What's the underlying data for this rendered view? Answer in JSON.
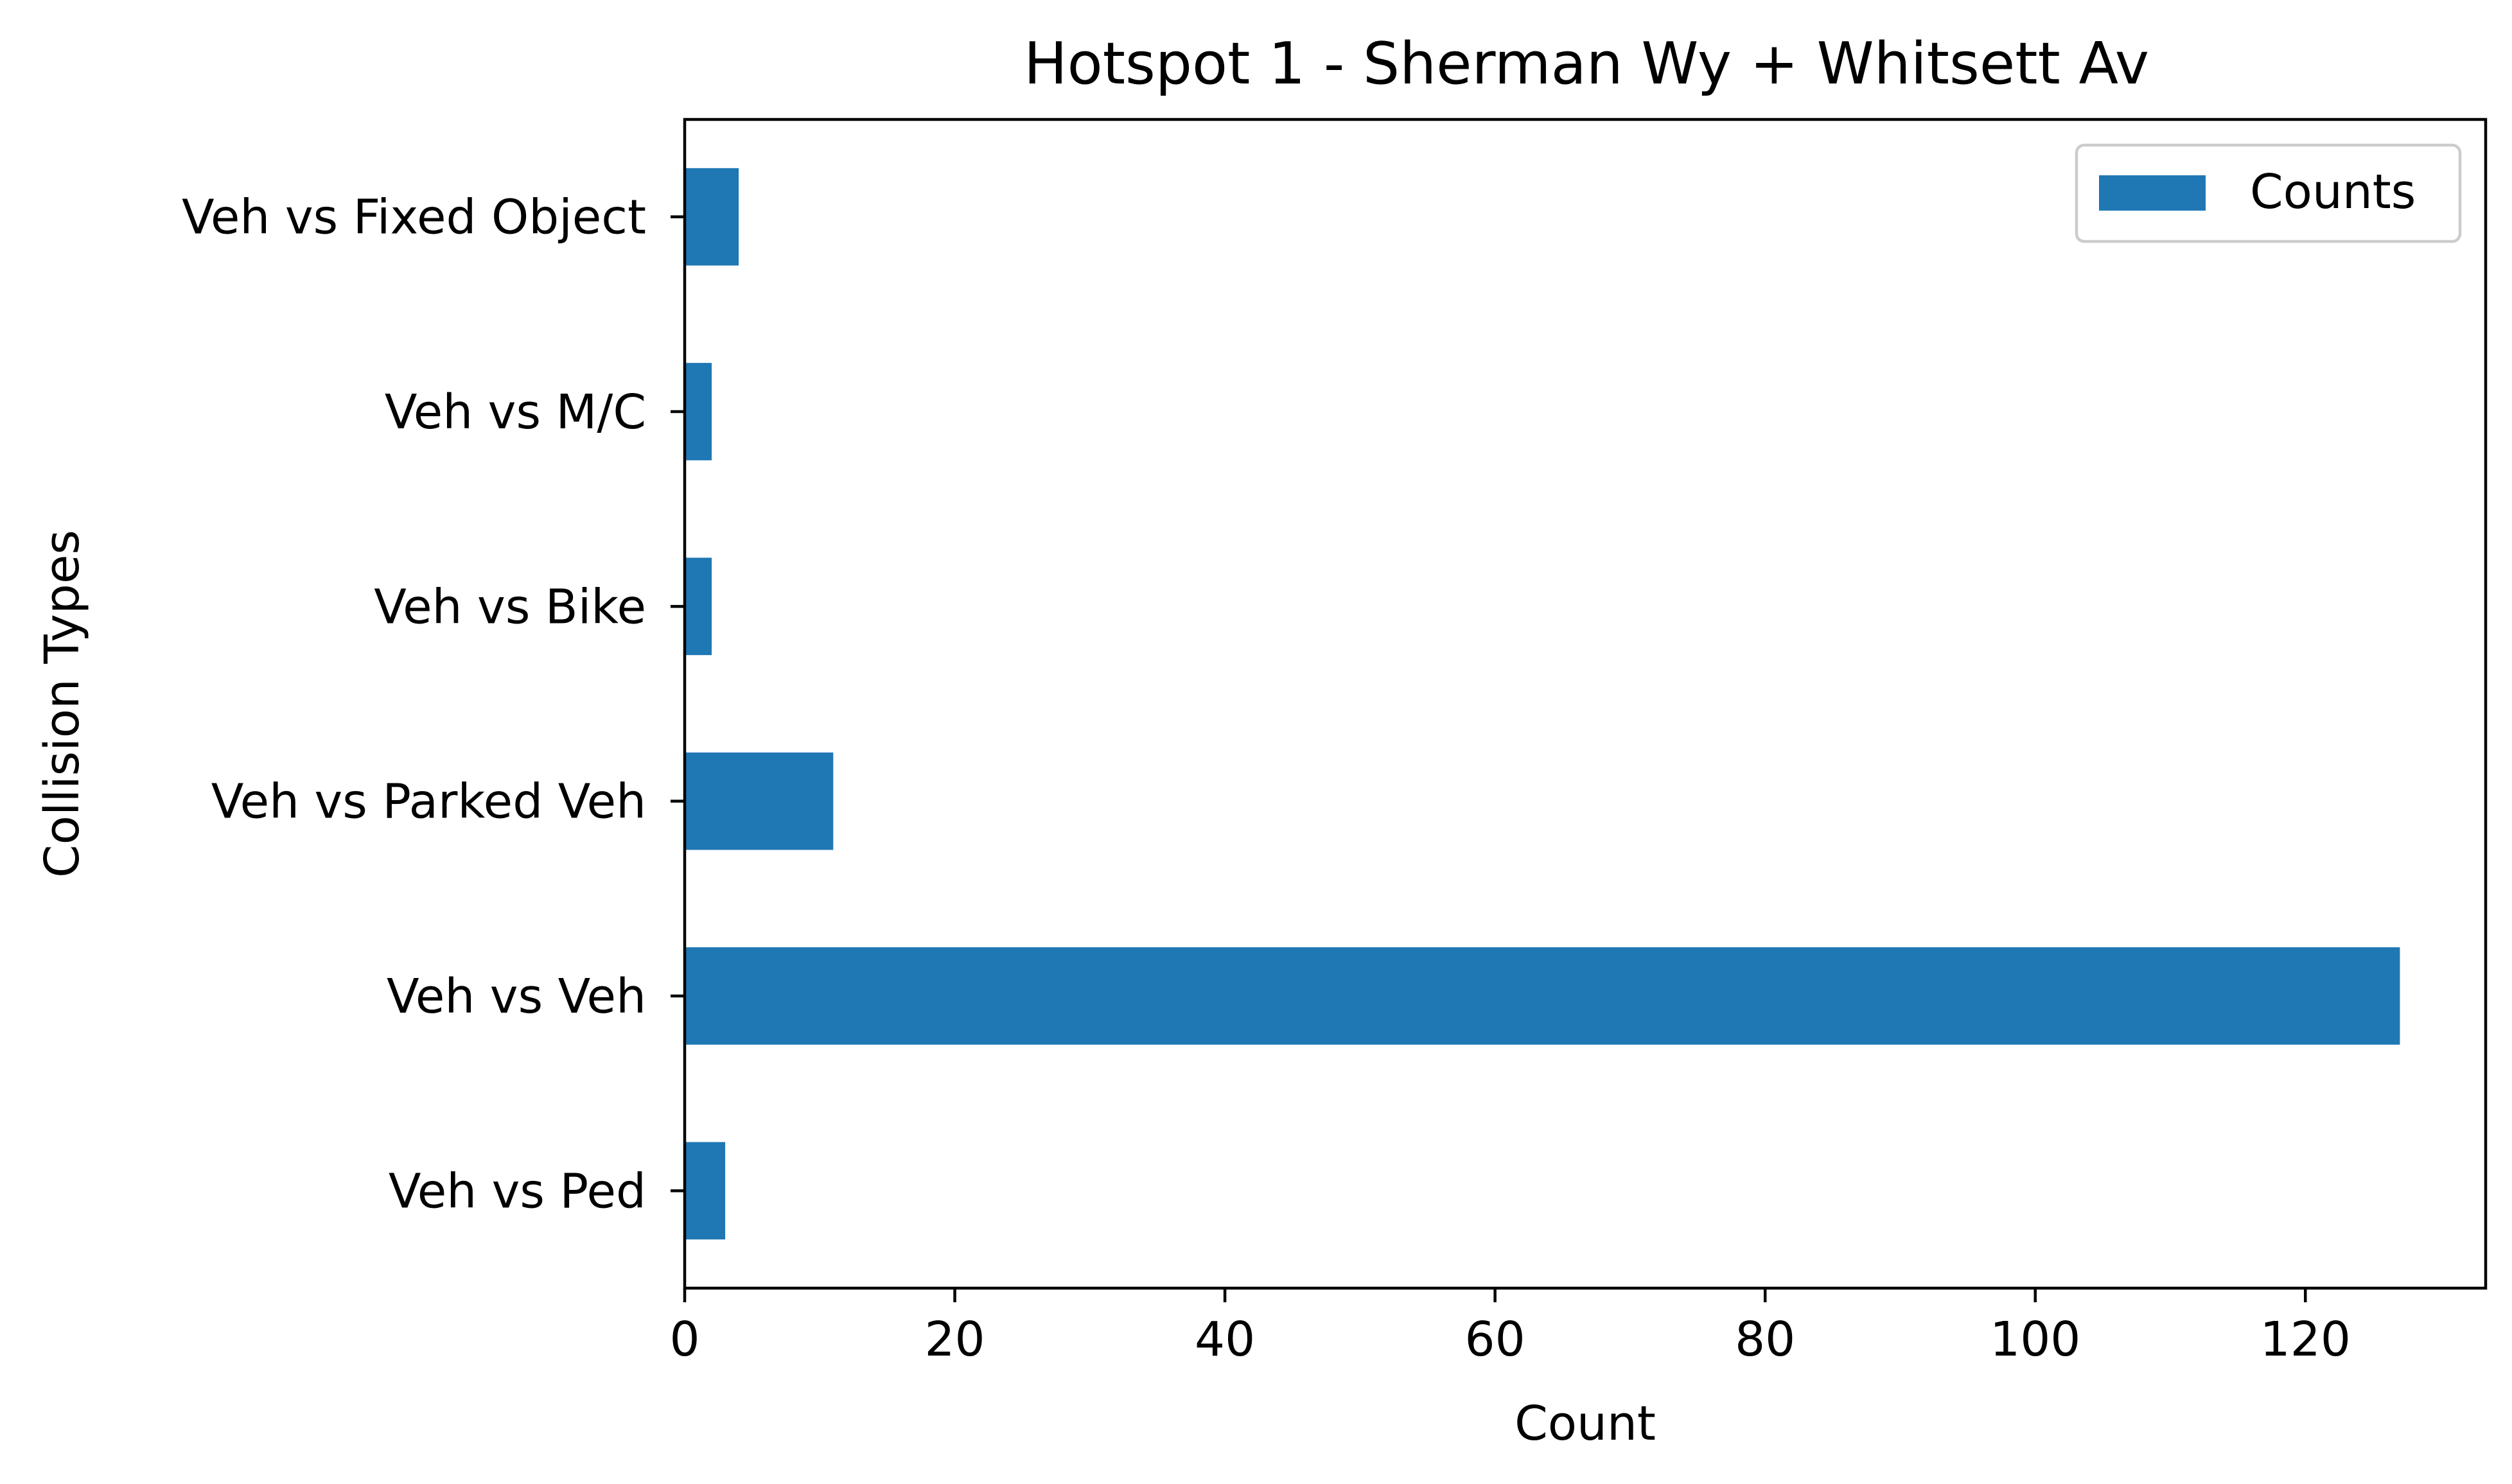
{
  "chart_data": {
    "type": "bar",
    "orientation": "horizontal",
    "title": "Hotspot 1 - Sherman Wy + Whitsett Av",
    "xlabel": "Count",
    "ylabel": "Collision Types",
    "categories": [
      "Veh vs Ped",
      "Veh vs Veh",
      "Veh vs Parked Veh",
      "Veh vs Bike",
      "Veh vs M/C",
      "Veh vs Fixed Object"
    ],
    "series": [
      {
        "name": "Counts",
        "values": [
          3,
          127,
          11,
          2,
          2,
          4
        ],
        "color": "#1f77b4"
      }
    ],
    "xlim": [
      0,
      133.35
    ],
    "xticks": [
      0,
      20,
      40,
      60,
      80,
      100,
      120
    ],
    "grid": false,
    "legend_position": "top-right"
  }
}
